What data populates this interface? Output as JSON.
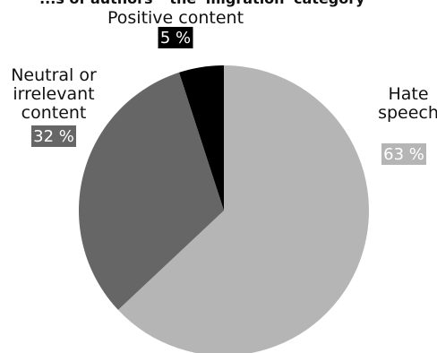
{
  "chart_data": {
    "type": "pie",
    "title": "...s of authors' \"the 'migration' category\"",
    "slices": [
      {
        "name_lines": [
          "Positive content"
        ],
        "value": 5,
        "value_label": "5 %",
        "color": "#000000",
        "badge_color": "#000000"
      },
      {
        "name_lines": [
          "Hate",
          "speech"
        ],
        "value": 63,
        "value_label": "63 %",
        "color": "#b5b5b5",
        "badge_color": "#b5b5b5"
      },
      {
        "name_lines": [
          "Neutral or",
          "irrelevant",
          "content"
        ],
        "value": 32,
        "value_label": "32 %",
        "color": "#666666",
        "badge_color": "#666666"
      }
    ]
  }
}
